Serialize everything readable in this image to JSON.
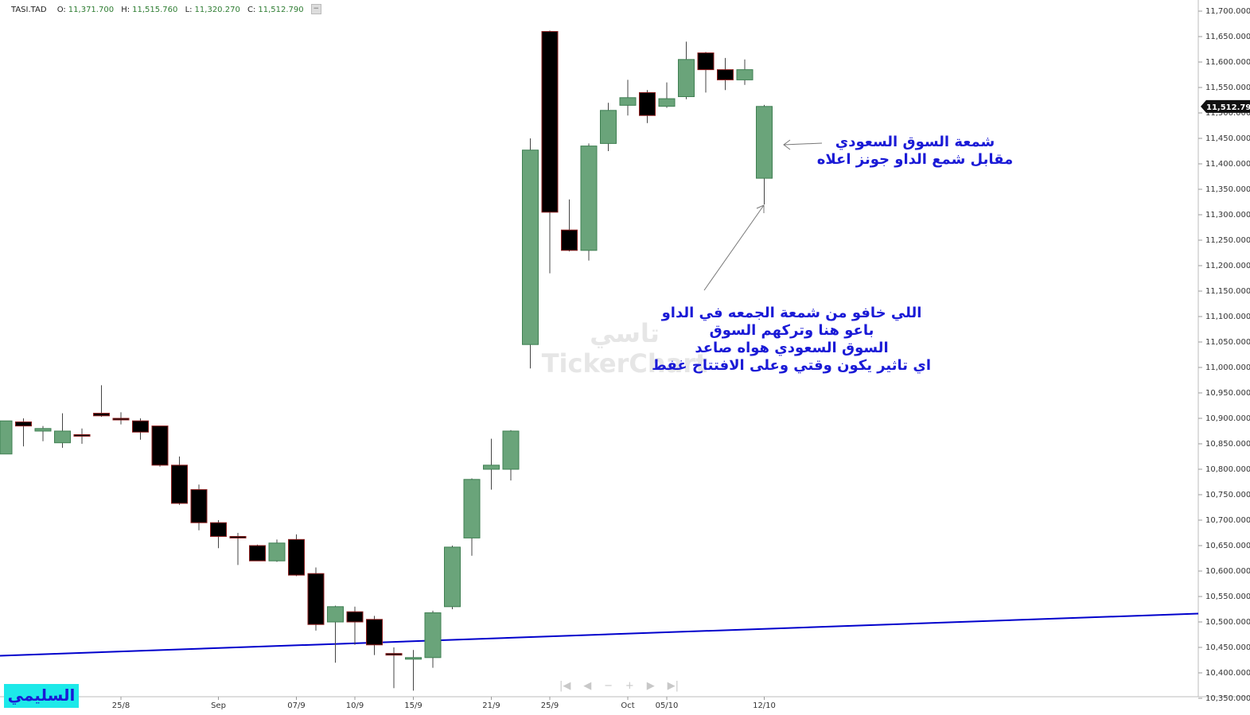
{
  "header": {
    "symbol": "TASI.TAD",
    "open_label": "O:",
    "open": "11,371.700",
    "high_label": "H:",
    "high": "11,515.760",
    "low_label": "L:",
    "low": "11,320.270",
    "close_label": "C:",
    "close": "11,512.790"
  },
  "chart_data": {
    "type": "candlestick",
    "y_ticks": [
      "11,700.000",
      "11,650.000",
      "11,600.000",
      "11,550.000",
      "11,500.000",
      "11,450.000",
      "11,400.000",
      "11,350.000",
      "11,300.000",
      "11,250.000",
      "11,200.000",
      "11,150.000",
      "11,100.000",
      "11,050.000",
      "11,000.000",
      "10,950.000",
      "10,900.000",
      "10,850.000",
      "10,800.000",
      "10,750.000",
      "10,700.000",
      "10,650.000",
      "10,600.000",
      "10,550.000",
      "10,500.000",
      "10,450.000",
      "10,400.000",
      "10,350.000"
    ],
    "ylim": [
      10350,
      11710
    ],
    "last_price": "11,512.790",
    "x_ticks": [
      "25/8",
      "Sep",
      "07/9",
      "10/9",
      "15/9",
      "21/9",
      "25/9",
      "Oct",
      "05/10",
      "12/10"
    ],
    "x_tick_bar_index": [
      6,
      11,
      15,
      18,
      21,
      25,
      28,
      32,
      34,
      39
    ],
    "candles": [
      {
        "o": 10830,
        "h": 10895,
        "l": 10830,
        "c": 10895
      },
      {
        "o": 10893,
        "h": 10900,
        "l": 10845,
        "c": 10885
      },
      {
        "o": 10875,
        "h": 10885,
        "l": 10855,
        "c": 10880
      },
      {
        "o": 10852,
        "h": 10910,
        "l": 10842,
        "c": 10875
      },
      {
        "o": 10868,
        "h": 10880,
        "l": 10850,
        "c": 10866
      },
      {
        "o": 10910,
        "h": 10965,
        "l": 10903,
        "c": 10905
      },
      {
        "o": 10900,
        "h": 10912,
        "l": 10888,
        "c": 10898
      },
      {
        "o": 10895,
        "h": 10900,
        "l": 10858,
        "c": 10873
      },
      {
        "o": 10885,
        "h": 10885,
        "l": 10805,
        "c": 10808
      },
      {
        "o": 10808,
        "h": 10825,
        "l": 10730,
        "c": 10733
      },
      {
        "o": 10760,
        "h": 10770,
        "l": 10680,
        "c": 10695
      },
      {
        "o": 10695,
        "h": 10700,
        "l": 10645,
        "c": 10668
      },
      {
        "o": 10668,
        "h": 10675,
        "l": 10612,
        "c": 10665
      },
      {
        "o": 10650,
        "h": 10652,
        "l": 10620,
        "c": 10620
      },
      {
        "o": 10620,
        "h": 10662,
        "l": 10618,
        "c": 10655
      },
      {
        "o": 10662,
        "h": 10672,
        "l": 10590,
        "c": 10592
      },
      {
        "o": 10595,
        "h": 10607,
        "l": 10483,
        "c": 10495
      },
      {
        "o": 10500,
        "h": 10532,
        "l": 10420,
        "c": 10530
      },
      {
        "o": 10520,
        "h": 10530,
        "l": 10455,
        "c": 10500
      },
      {
        "o": 10505,
        "h": 10512,
        "l": 10435,
        "c": 10455
      },
      {
        "o": 10438,
        "h": 10450,
        "l": 10370,
        "c": 10435
      },
      {
        "o": 10428,
        "h": 10445,
        "l": 10365,
        "c": 10430
      },
      {
        "o": 10430,
        "h": 10522,
        "l": 10410,
        "c": 10518
      },
      {
        "o": 10530,
        "h": 10650,
        "l": 10525,
        "c": 10647
      },
      {
        "o": 10665,
        "h": 10782,
        "l": 10630,
        "c": 10780
      },
      {
        "o": 10800,
        "h": 10860,
        "l": 10760,
        "c": 10808
      },
      {
        "o": 10800,
        "h": 10877,
        "l": 10778,
        "c": 10875
      },
      {
        "o": 11045,
        "h": 11450,
        "l": 10998,
        "c": 11427
      },
      {
        "o": 11660,
        "h": 11662,
        "l": 11185,
        "c": 11305
      },
      {
        "o": 11270,
        "h": 11330,
        "l": 11228,
        "c": 11230
      },
      {
        "o": 11230,
        "h": 11440,
        "l": 11210,
        "c": 11435
      },
      {
        "o": 11440,
        "h": 11520,
        "l": 11425,
        "c": 11505
      },
      {
        "o": 11515,
        "h": 11565,
        "l": 11495,
        "c": 11530
      },
      {
        "o": 11540,
        "h": 11545,
        "l": 11480,
        "c": 11495
      },
      {
        "o": 11513,
        "h": 11560,
        "l": 11510,
        "c": 11528
      },
      {
        "o": 11532,
        "h": 11640,
        "l": 11527,
        "c": 11605
      },
      {
        "o": 11618,
        "h": 11620,
        "l": 11540,
        "c": 11585
      },
      {
        "o": 11585,
        "h": 11608,
        "l": 11545,
        "c": 11565
      },
      {
        "o": 11565,
        "h": 11605,
        "l": 11555,
        "c": 11585
      },
      {
        "o": 11371.7,
        "h": 11515.76,
        "l": 11320.27,
        "c": 11512.79
      }
    ],
    "trendline": {
      "x_start_bar": 0,
      "x_end_bar": 60,
      "y_start": 10468,
      "y_end": 10518,
      "color": "#0000cc"
    },
    "colors": {
      "up_fill": "#6aa47a",
      "up_border": "#3f7f52",
      "down_fill": "#000000",
      "down_border": "#8b1c1c",
      "wick": "#444444"
    }
  },
  "annotations": {
    "note_1_line1": "شمعة السوق السعودي",
    "note_1_line2": "مقابل شمع الداو جونز اعلاه",
    "note_2_line1": "اللي خافو من شمعة الجمعه في الداو",
    "note_2_line2": "باعو هنا وتركهم السوق",
    "note_2_line3": "السوق السعودي هواه صاعد",
    "note_2_line4": "اي تاثير يكون وقتي وعلى الافتتاح غفط"
  },
  "watermark": {
    "arabic": "تاسي",
    "english": "TickerChart"
  },
  "author": {
    "name": "السليمي"
  },
  "navigation": {
    "first": "|◀",
    "prev": "◀",
    "zoom_out": "−",
    "zoom_in": "+",
    "next": "▶",
    "last": "▶|"
  }
}
